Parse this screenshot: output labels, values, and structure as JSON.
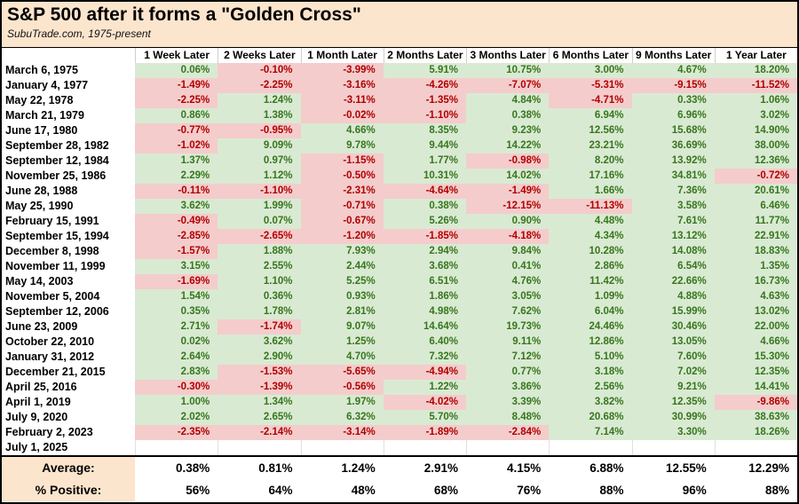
{
  "colors": {
    "header_bg": "#fce5cd",
    "positive_bg": "#d9ead3",
    "negative_bg": "#f4cccc",
    "positive_text": "#38761d",
    "negative_text": "#b00000",
    "text": "#000000"
  },
  "chart_data": {
    "type": "table",
    "title": "S&P 500 after it forms a \"Golden Cross\"",
    "subtitle": "SubuTrade.com, 1975-present",
    "columns": [
      "1 Week Later",
      "2 Weeks Later",
      "1 Month Later",
      "2 Months Later",
      "3 Months Later",
      "6 Months Later",
      "9 Months Later",
      "1 Year Later"
    ],
    "rows": [
      {
        "date": "March 6, 1975",
        "values": [
          "0.06%",
          "-0.10%",
          "-3.99%",
          "5.91%",
          "10.75%",
          "3.00%",
          "4.67%",
          "18.20%"
        ]
      },
      {
        "date": "January 4, 1977",
        "values": [
          "-1.49%",
          "-2.25%",
          "-3.16%",
          "-4.26%",
          "-7.07%",
          "-5.31%",
          "-9.15%",
          "-11.52%"
        ]
      },
      {
        "date": "May 22, 1978",
        "values": [
          "-2.25%",
          "1.24%",
          "-3.11%",
          "-1.35%",
          "4.84%",
          "-4.71%",
          "0.33%",
          "1.06%"
        ]
      },
      {
        "date": "March 21, 1979",
        "values": [
          "0.86%",
          "1.38%",
          "-0.02%",
          "-1.10%",
          "0.38%",
          "6.94%",
          "6.96%",
          "3.02%"
        ]
      },
      {
        "date": "June 17, 1980",
        "values": [
          "-0.77%",
          "-0.95%",
          "4.66%",
          "8.35%",
          "9.23%",
          "12.56%",
          "15.68%",
          "14.90%"
        ]
      },
      {
        "date": "September 28, 1982",
        "values": [
          "-1.02%",
          "9.09%",
          "9.78%",
          "9.44%",
          "14.22%",
          "23.21%",
          "36.69%",
          "38.00%"
        ]
      },
      {
        "date": "September 12, 1984",
        "values": [
          "1.37%",
          "0.97%",
          "-1.15%",
          "1.77%",
          "-0.98%",
          "8.20%",
          "13.92%",
          "12.36%"
        ]
      },
      {
        "date": "November 25, 1986",
        "values": [
          "2.29%",
          "1.12%",
          "-0.50%",
          "10.31%",
          "14.02%",
          "17.16%",
          "34.81%",
          "-0.72%"
        ]
      },
      {
        "date": "June 28, 1988",
        "values": [
          "-0.11%",
          "-1.10%",
          "-2.31%",
          "-4.64%",
          "-1.49%",
          "1.66%",
          "7.36%",
          "20.61%"
        ]
      },
      {
        "date": "May 25, 1990",
        "values": [
          "3.62%",
          "1.99%",
          "-0.71%",
          "0.38%",
          "-12.15%",
          "-11.13%",
          "3.58%",
          "6.46%"
        ]
      },
      {
        "date": "February 15, 1991",
        "values": [
          "-0.49%",
          "0.07%",
          "-0.67%",
          "5.26%",
          "0.90%",
          "4.48%",
          "7.61%",
          "11.77%"
        ]
      },
      {
        "date": "September 15, 1994",
        "values": [
          "-2.85%",
          "-2.65%",
          "-1.20%",
          "-1.85%",
          "-4.18%",
          "4.34%",
          "13.12%",
          "22.91%"
        ]
      },
      {
        "date": "December 8, 1998",
        "values": [
          "-1.57%",
          "1.88%",
          "7.93%",
          "2.94%",
          "9.84%",
          "10.28%",
          "14.08%",
          "18.83%"
        ]
      },
      {
        "date": "November 11, 1999",
        "values": [
          "3.15%",
          "2.55%",
          "2.44%",
          "3.68%",
          "0.41%",
          "2.86%",
          "6.54%",
          "1.35%"
        ]
      },
      {
        "date": "May 14, 2003",
        "values": [
          "-1.69%",
          "1.10%",
          "5.25%",
          "6.51%",
          "4.76%",
          "11.42%",
          "22.66%",
          "16.73%"
        ]
      },
      {
        "date": "November 5, 2004",
        "values": [
          "1.54%",
          "0.36%",
          "0.93%",
          "1.86%",
          "3.05%",
          "1.09%",
          "4.88%",
          "4.63%"
        ]
      },
      {
        "date": "September 12, 2006",
        "values": [
          "0.35%",
          "1.78%",
          "2.81%",
          "4.98%",
          "7.62%",
          "6.04%",
          "15.99%",
          "13.02%"
        ]
      },
      {
        "date": "June 23, 2009",
        "values": [
          "2.71%",
          "-1.74%",
          "9.07%",
          "14.64%",
          "19.73%",
          "24.46%",
          "30.46%",
          "22.00%"
        ]
      },
      {
        "date": "October 22, 2010",
        "values": [
          "0.02%",
          "3.62%",
          "1.25%",
          "6.40%",
          "9.11%",
          "12.86%",
          "13.05%",
          "4.66%"
        ]
      },
      {
        "date": "January 31, 2012",
        "values": [
          "2.64%",
          "2.90%",
          "4.70%",
          "7.32%",
          "7.12%",
          "5.10%",
          "7.60%",
          "15.30%"
        ]
      },
      {
        "date": "December 21, 2015",
        "values": [
          "2.83%",
          "-1.53%",
          "-5.65%",
          "-4.94%",
          "0.77%",
          "3.18%",
          "7.02%",
          "12.35%"
        ]
      },
      {
        "date": "April 25, 2016",
        "values": [
          "-0.30%",
          "-1.39%",
          "-0.56%",
          "1.22%",
          "3.86%",
          "2.56%",
          "9.21%",
          "14.41%"
        ]
      },
      {
        "date": "April 1, 2019",
        "values": [
          "1.00%",
          "1.34%",
          "1.97%",
          "-4.02%",
          "3.39%",
          "3.82%",
          "12.35%",
          "-9.86%"
        ]
      },
      {
        "date": "July 9, 2020",
        "values": [
          "2.02%",
          "2.65%",
          "6.32%",
          "5.70%",
          "8.48%",
          "20.68%",
          "30.99%",
          "38.63%"
        ]
      },
      {
        "date": "February 2, 2023",
        "values": [
          "-2.35%",
          "-2.14%",
          "-3.14%",
          "-1.89%",
          "-2.84%",
          "7.14%",
          "3.30%",
          "18.26%"
        ]
      },
      {
        "date": "July 1, 2025",
        "values": [
          "",
          "",
          "",
          "",
          "",
          "",
          "",
          ""
        ]
      }
    ],
    "footer": {
      "average_label": "Average:",
      "average_values": [
        "0.38%",
        "0.81%",
        "1.24%",
        "2.91%",
        "4.15%",
        "6.88%",
        "12.55%",
        "12.29%"
      ],
      "positive_label": "% Positive:",
      "positive_values": [
        "56%",
        "64%",
        "48%",
        "68%",
        "76%",
        "88%",
        "96%",
        "88%"
      ]
    }
  }
}
